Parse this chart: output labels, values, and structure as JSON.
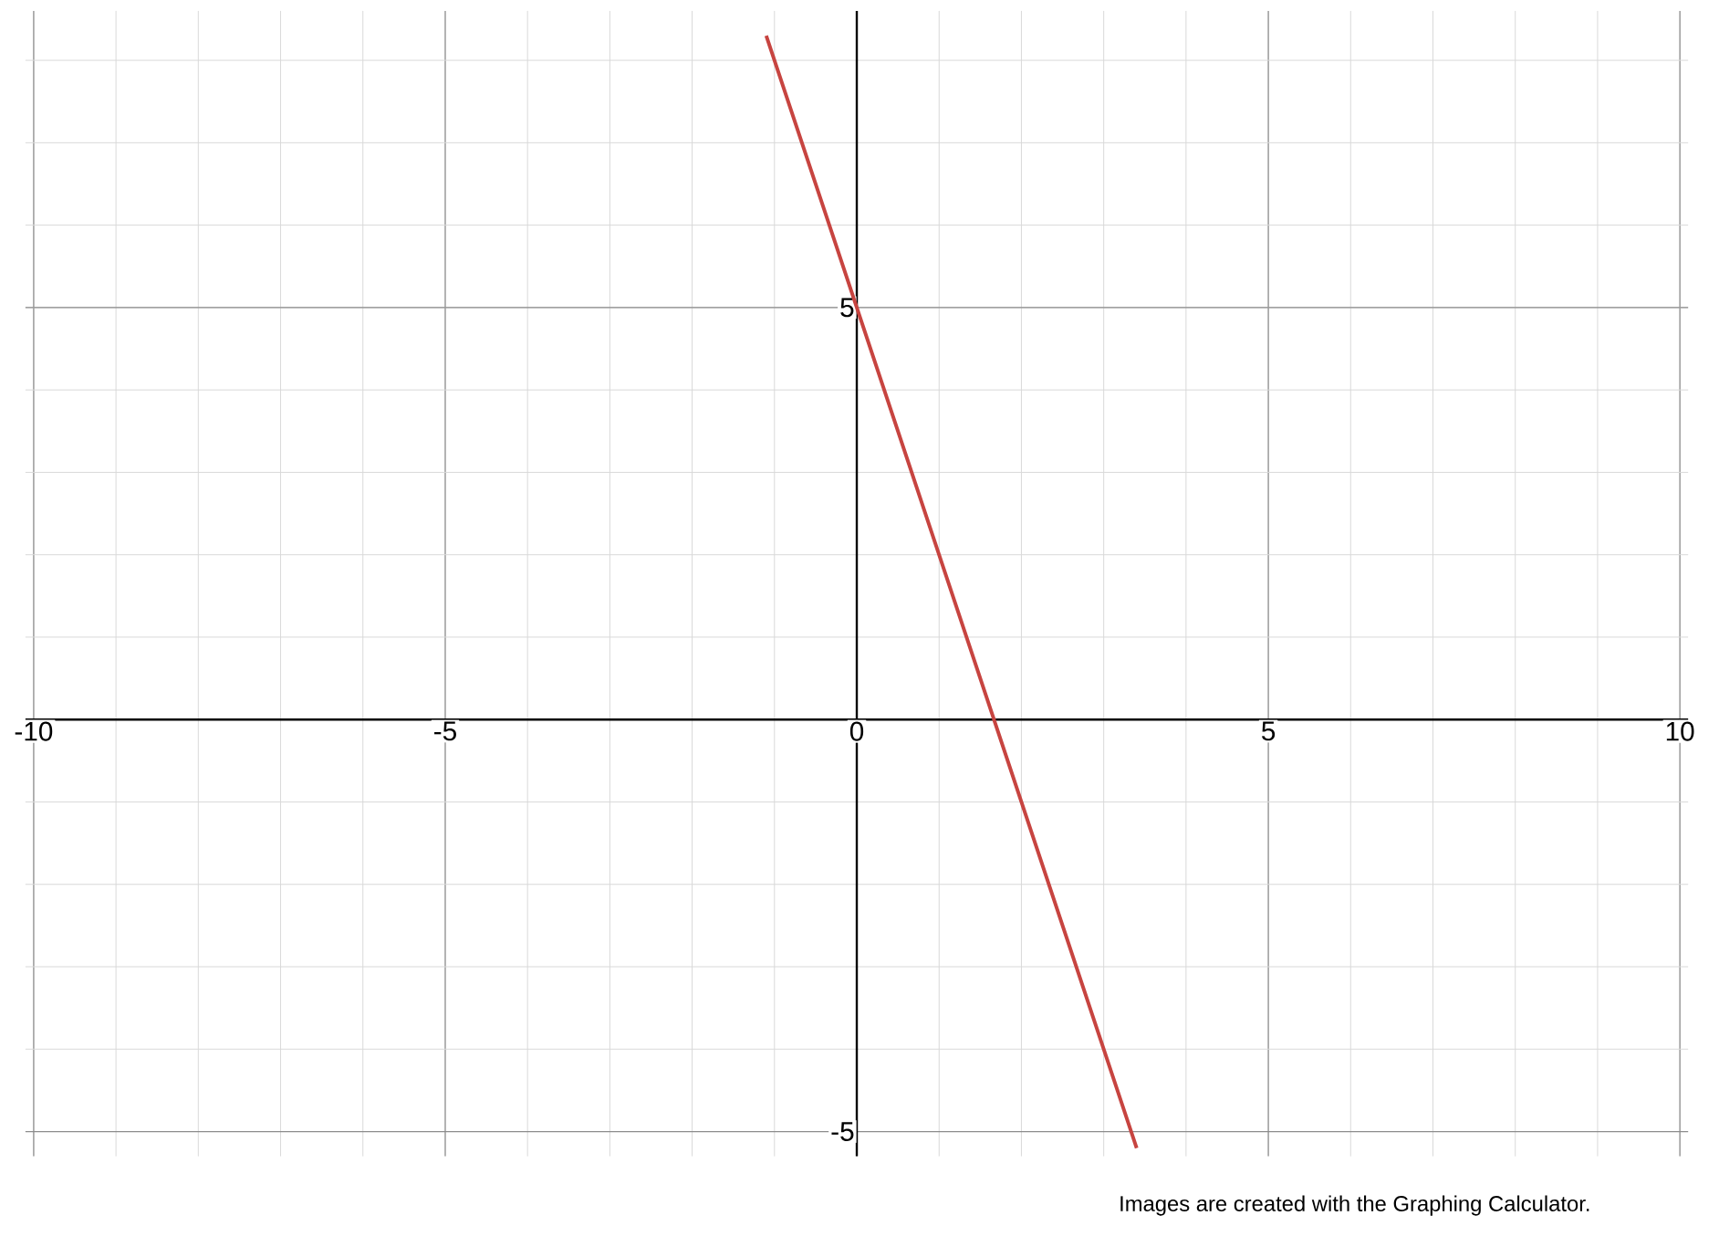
{
  "chart_data": {
    "type": "line",
    "series": [
      {
        "color": "#c74440",
        "x": [
          -1.1,
          0,
          3.4
        ],
        "values": [
          8.3,
          5,
          -5.2
        ]
      }
    ],
    "xlim": [
      -10.1,
      10.1
    ],
    "ylim": [
      -5.3,
      8.6
    ],
    "xticks": [
      -10,
      -5,
      0,
      5,
      10
    ],
    "yticks": [
      -5,
      5
    ],
    "grid": true,
    "annotations": [
      "Images are created with the Graphing Calculator."
    ]
  }
}
